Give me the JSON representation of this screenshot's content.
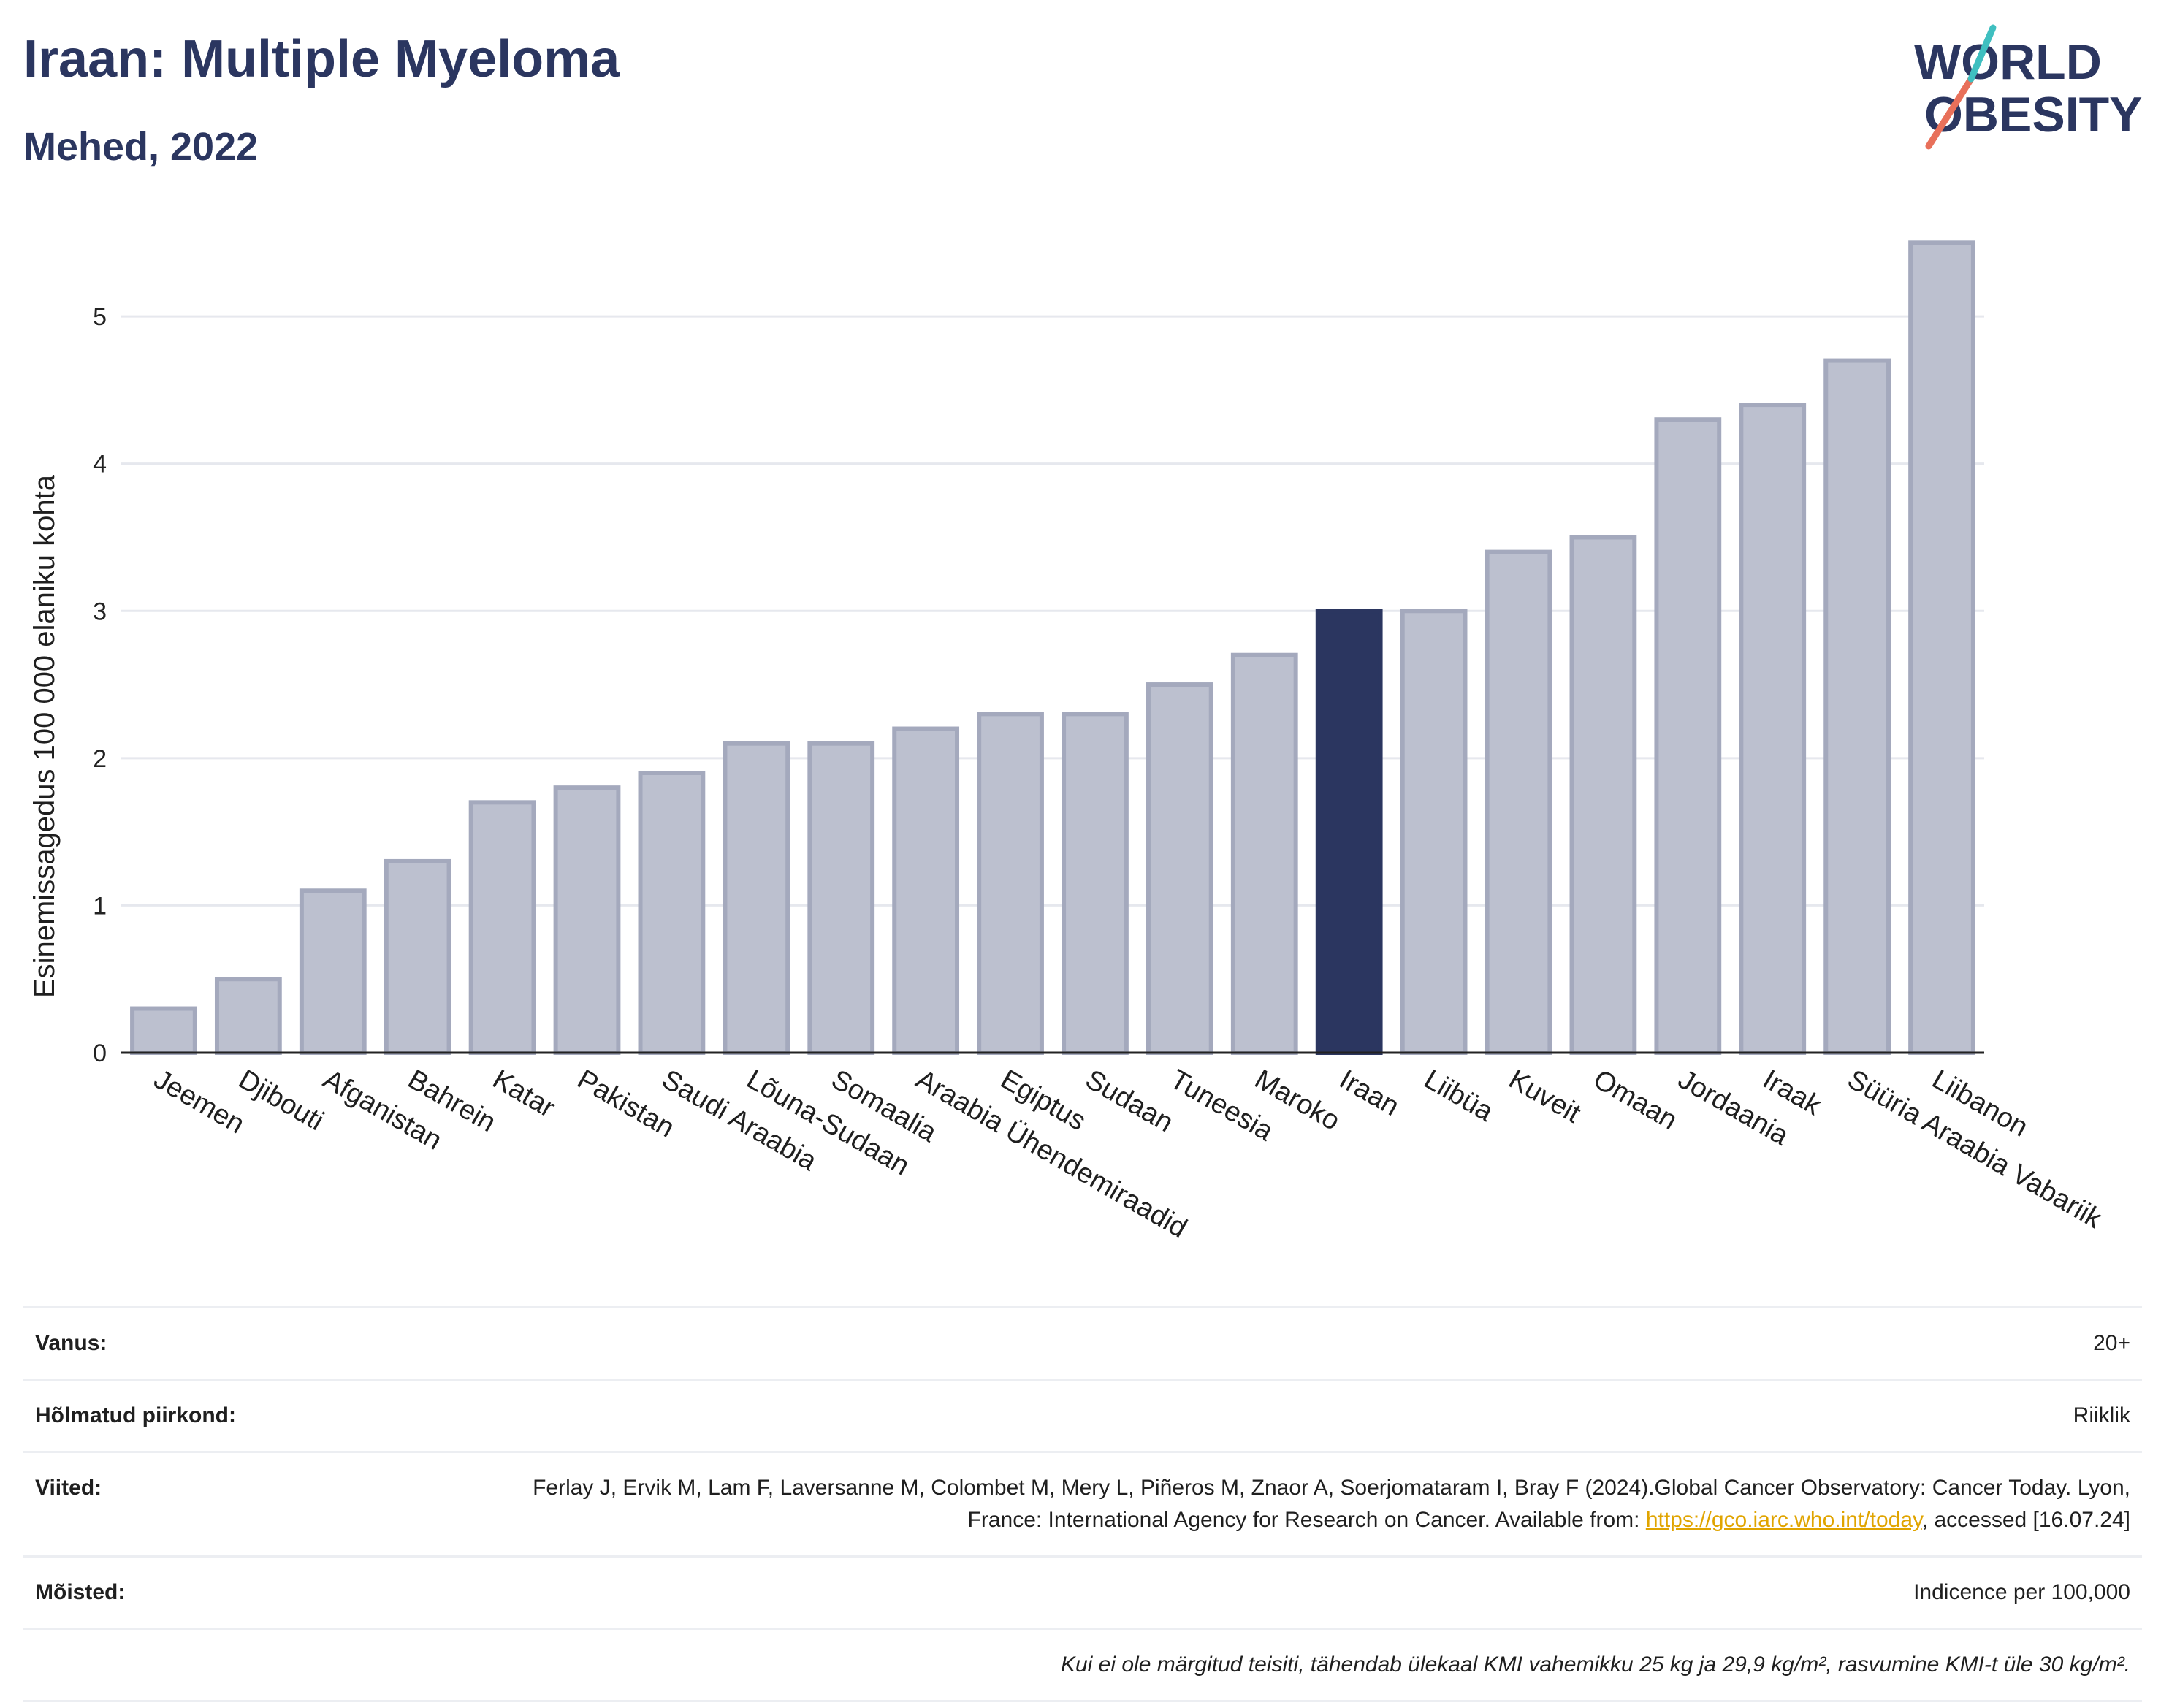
{
  "header": {
    "title": "Iraan: Multiple Myeloma",
    "subtitle": "Mehed, 2022"
  },
  "logo": {
    "line1": "WORLD",
    "line2": "OBESITY"
  },
  "chart_data": {
    "type": "bar",
    "ylabel": "Esinemissagedus 100 000 elaniku kohta",
    "xlabel": "",
    "ylim": [
      0,
      5.7
    ],
    "yticks": [
      0,
      1,
      2,
      3,
      4,
      5
    ],
    "grid": true,
    "categories": [
      "Jeemen",
      "Djibouti",
      "Afganistan",
      "Bahrein",
      "Katar",
      "Pakistan",
      "Saudi Araabia",
      "Lõuna-Sudaan",
      "Somaalia",
      "Araabia Ühendemiraadid",
      "Egiptus",
      "Sudaan",
      "Tuneesia",
      "Maroko",
      "Iraan",
      "Liibüa",
      "Kuveit",
      "Omaan",
      "Jordaania",
      "Iraak",
      "Süüria Araabia Vabariik",
      "Liibanon"
    ],
    "values": [
      0.3,
      0.5,
      1.1,
      1.3,
      1.7,
      1.8,
      1.9,
      2.1,
      2.1,
      2.2,
      2.3,
      2.3,
      2.5,
      2.7,
      3.0,
      3.0,
      3.4,
      3.5,
      4.3,
      4.4,
      4.7,
      5.5
    ],
    "highlight": "Iraan",
    "colors": {
      "bar": "#bcc0cf",
      "bar_edge": "#a4a9bd",
      "highlight": "#2b3660",
      "grid": "#e6e8ee",
      "axis": "#222222"
    }
  },
  "info": {
    "age_label": "Vanus:",
    "age_value": "20+",
    "region_label": "Hõlmatud piirkond:",
    "region_value": "Riiklik",
    "refs_label": "Viited:",
    "refs_text_1": "Ferlay J, Ervik M, Lam F, Laversanne M, Colombet M, Mery L, Piñeros M, Znaor A, Soerjomataram I, Bray F (2024).Global Cancer Observatory: Cancer Today. Lyon, France: International Agency for Research on Cancer. Available from: ",
    "refs_link": "https://gco.iarc.who.int/today",
    "refs_text_2": ", accessed [16.07.24]",
    "definitions_label": "Mõisted:",
    "definitions_value": "Indicence per 100,000",
    "note": "Kui ei ole märgitud teisiti, tähendab ülekaal KMI vahemikku 25 kg ja 29,9 kg/m², rasvumine KMI-t üle 30 kg/m²."
  }
}
